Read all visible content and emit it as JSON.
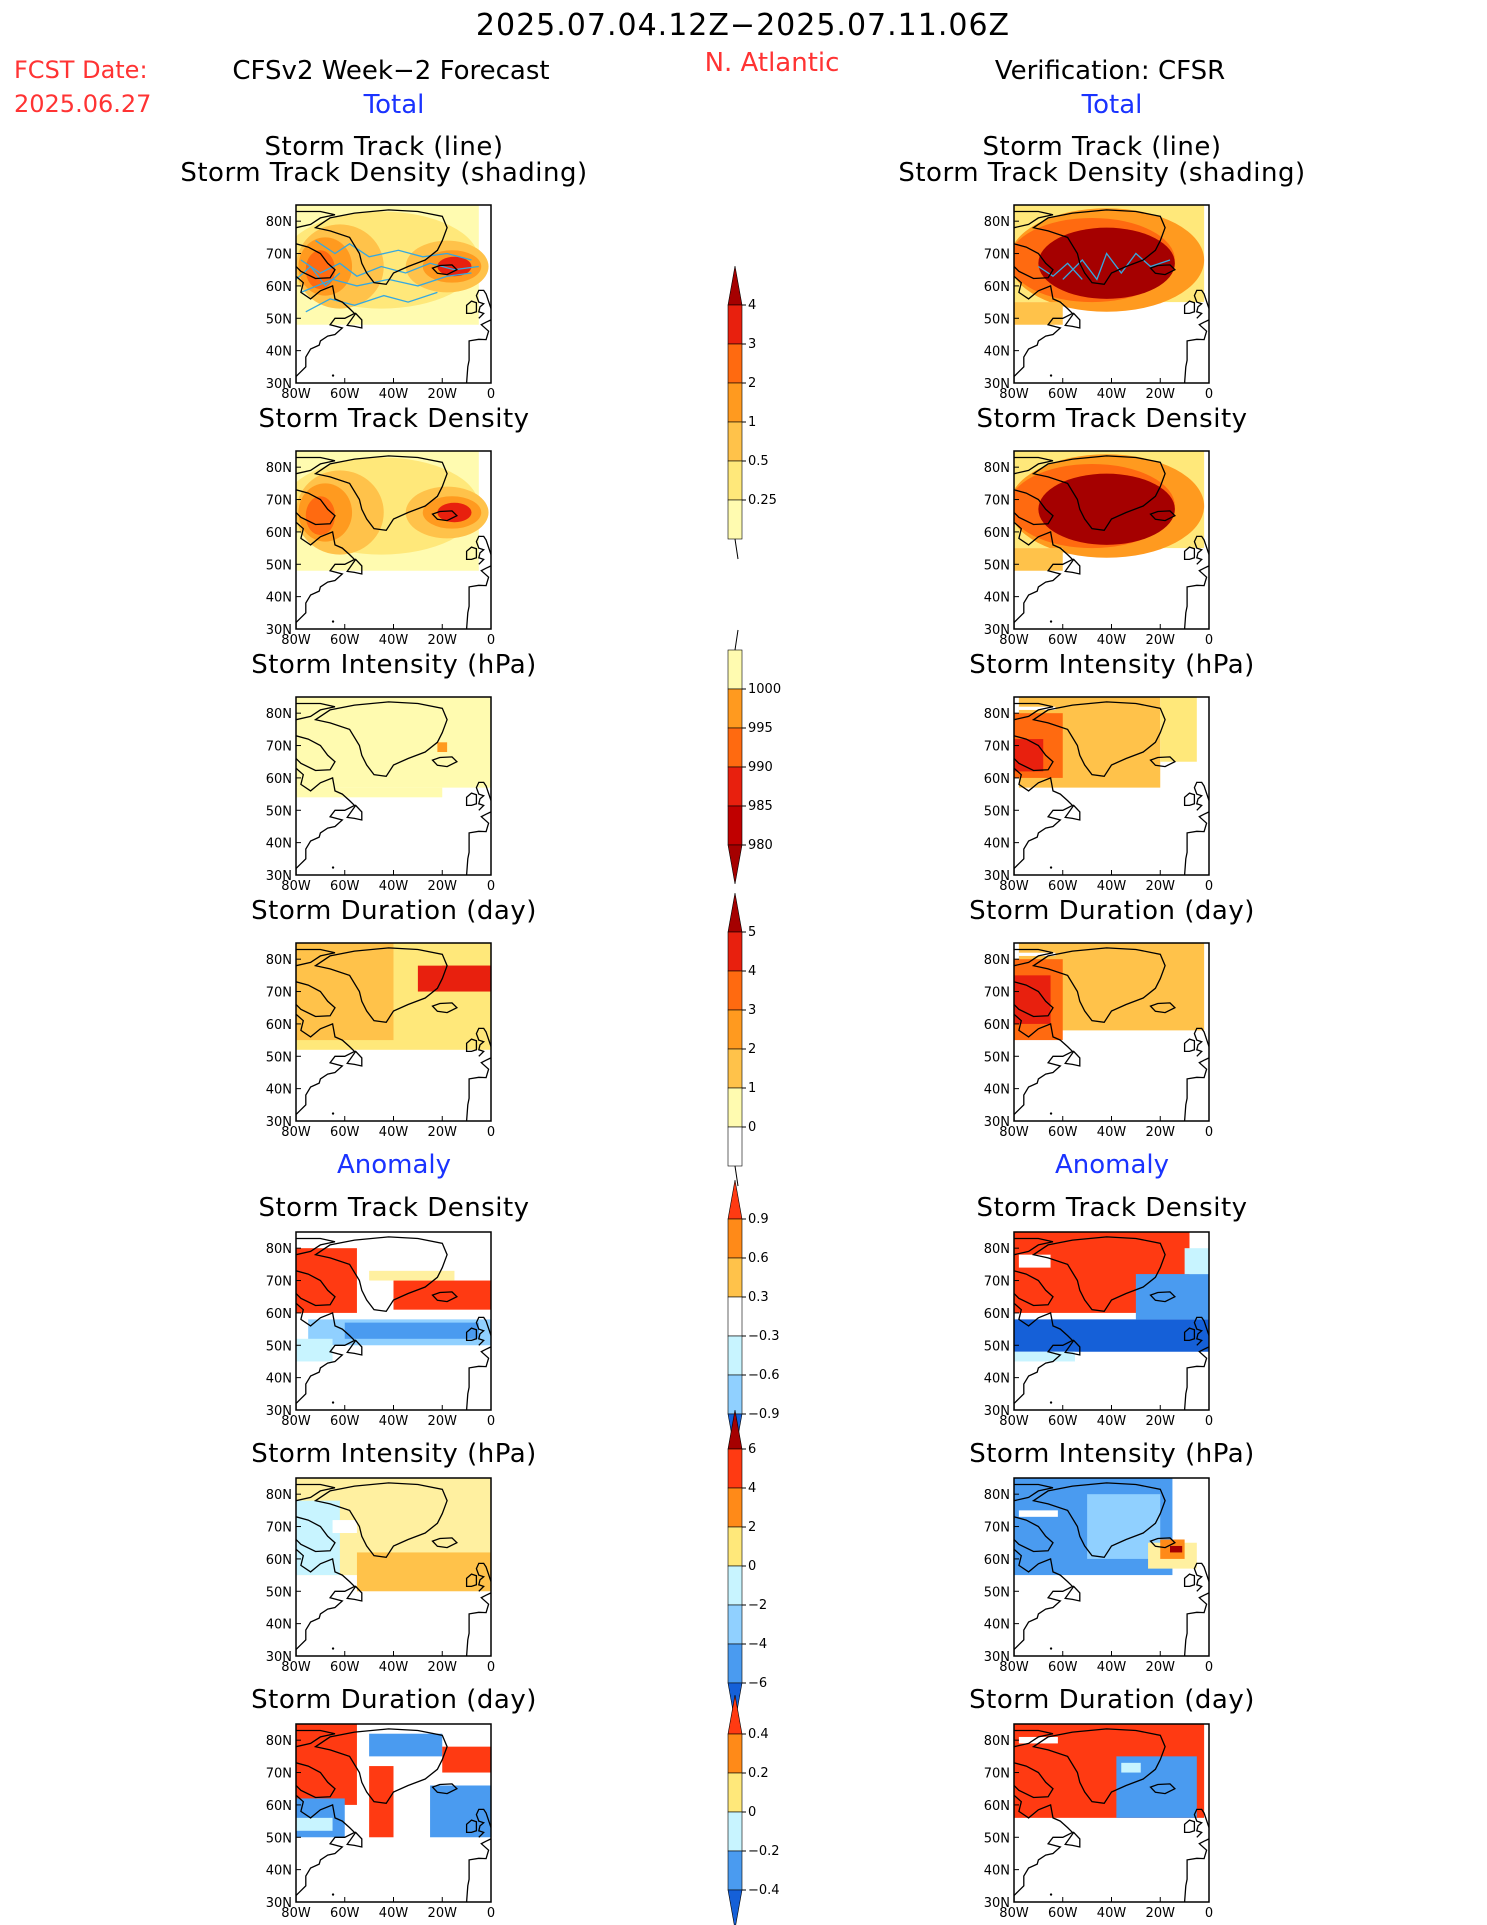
{
  "header": {
    "title": "2025.07.04.12Z−2025.07.11.06Z",
    "fcst_label": "FCST Date:",
    "fcst_date": "2025.06.27",
    "model_label": "CFSv2 Week−2 Forecast",
    "region": "N. Atlantic",
    "verification_label": "Verification: CFSR"
  },
  "sections": {
    "total": "Total",
    "anomaly": "Anomaly"
  },
  "panel_titles": {
    "track_line": "Storm Track (line)",
    "track_shading": "Storm Track Density (shading)",
    "density": "Storm Track Density",
    "intensity": "Storm Intensity (hPa)",
    "duration": "Storm Duration (day)"
  },
  "axes": {
    "lon_ticks": [
      "80W",
      "60W",
      "40W",
      "20W",
      "0"
    ],
    "lat_ticks": [
      "80N",
      "70N",
      "60N",
      "50N",
      "40N",
      "30N"
    ]
  },
  "colorbars": {
    "density_total": [
      "4",
      "3",
      "2",
      "1",
      "0.5",
      "0.25"
    ],
    "intensity_total": [
      "1000",
      "995",
      "990",
      "985",
      "980"
    ],
    "duration_total": [
      "5",
      "4",
      "3",
      "2",
      "1",
      "0"
    ],
    "density_anom": [
      "0.9",
      "0.6",
      "0.3",
      "−0.3",
      "−0.6",
      "−0.9"
    ],
    "intensity_anom": [
      "6",
      "4",
      "2",
      "0",
      "−2",
      "−4",
      "−6"
    ],
    "duration_anom": [
      "0.4",
      "0.2",
      "0",
      "−0.2",
      "−0.4"
    ]
  },
  "chart_data": {
    "type": "heatmap",
    "note_region": "N. Atlantic",
    "lon_range": [
      "80W",
      "0"
    ],
    "lat_range": [
      "30N",
      "85N"
    ],
    "colors": {
      "total_scale": [
        "#fffbb0",
        "#ffe87a",
        "#ffc24a",
        "#ff9a1f",
        "#ff6a10",
        "#e8200e",
        "#a50000"
      ],
      "anom_warm": [
        "#fff0a0",
        "#ffc24a",
        "#ff8a18",
        "#ff3a12",
        "#a50000"
      ],
      "anom_cool": [
        "#c8f4ff",
        "#90d0ff",
        "#4a9bf0",
        "#1560d8"
      ]
    }
  }
}
